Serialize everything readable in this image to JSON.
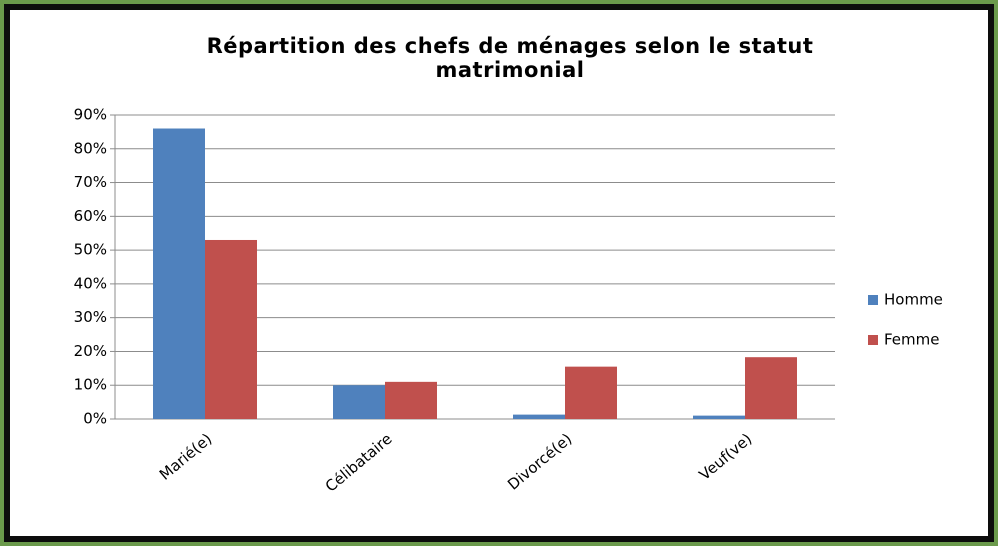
{
  "chart_data": {
    "type": "bar",
    "title": "Répartition des chefs de ménages selon le statut matrimonial",
    "categories": [
      "Marié(e)",
      "Célibataire",
      "Divorcé(e)",
      "Veuf(ve)"
    ],
    "series": [
      {
        "name": "Homme",
        "color": "#4f81bd",
        "values": [
          86,
          10,
          1.3,
          1
        ]
      },
      {
        "name": "Femme",
        "color": "#c0504d",
        "values": [
          53,
          11,
          15.5,
          18.3
        ]
      }
    ],
    "ylim": [
      0,
      90
    ],
    "yticks": [
      {
        "value": 0,
        "label": "0%"
      },
      {
        "value": 10,
        "label": "10%"
      },
      {
        "value": 20,
        "label": "20%"
      },
      {
        "value": 30,
        "label": "30%"
      },
      {
        "value": 40,
        "label": "40%"
      },
      {
        "value": 50,
        "label": "50%"
      },
      {
        "value": 60,
        "label": "60%"
      },
      {
        "value": 70,
        "label": "70%"
      },
      {
        "value": 80,
        "label": "80%"
      },
      {
        "value": 90,
        "label": "90%"
      }
    ],
    "grid": true,
    "legend": "right"
  }
}
